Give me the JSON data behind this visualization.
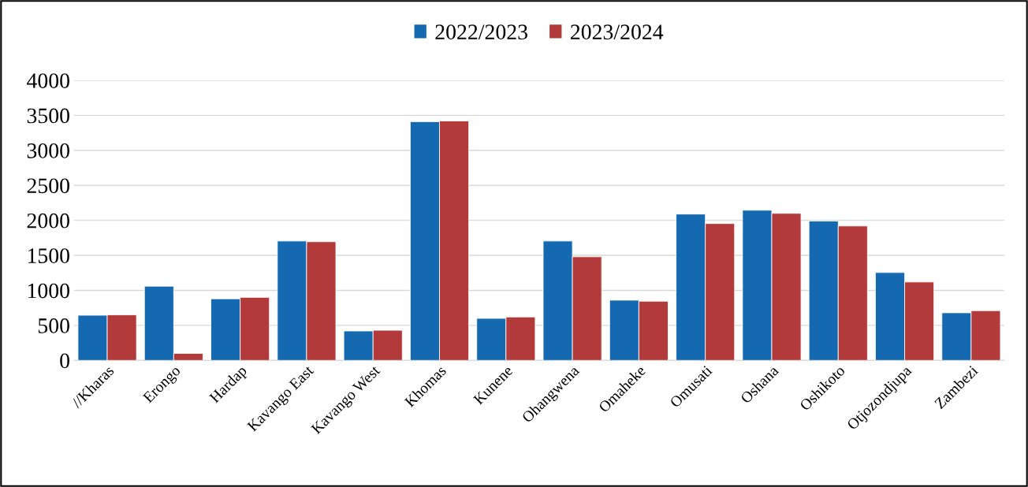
{
  "chart_data": {
    "type": "bar",
    "categories": [
      "//Kharas",
      "Erongo",
      "Hardap",
      "Kavango East",
      "Kavango West",
      "Khomas",
      "Kunene",
      "Ohangwena",
      "Omaheke",
      "Omusati",
      "Oshana",
      "Oshikoto",
      "Otjozondjupa",
      "Zambezi"
    ],
    "series": [
      {
        "name": "2022/2023",
        "color": "#1569b0",
        "values": [
          645,
          1060,
          880,
          1705,
          420,
          3410,
          600,
          1705,
          860,
          2090,
          2145,
          1990,
          1255,
          680
        ]
      },
      {
        "name": "2023/2024",
        "color": "#b23a3a",
        "values": [
          650,
          100,
          900,
          1695,
          430,
          3420,
          620,
          1480,
          845,
          1955,
          2100,
          1920,
          1120,
          710
        ]
      }
    ],
    "ylim": [
      0,
      4000
    ],
    "yticks": [
      0,
      500,
      1000,
      1500,
      2000,
      2500,
      3000,
      3500,
      4000
    ],
    "grid": "y",
    "legend": "top"
  }
}
